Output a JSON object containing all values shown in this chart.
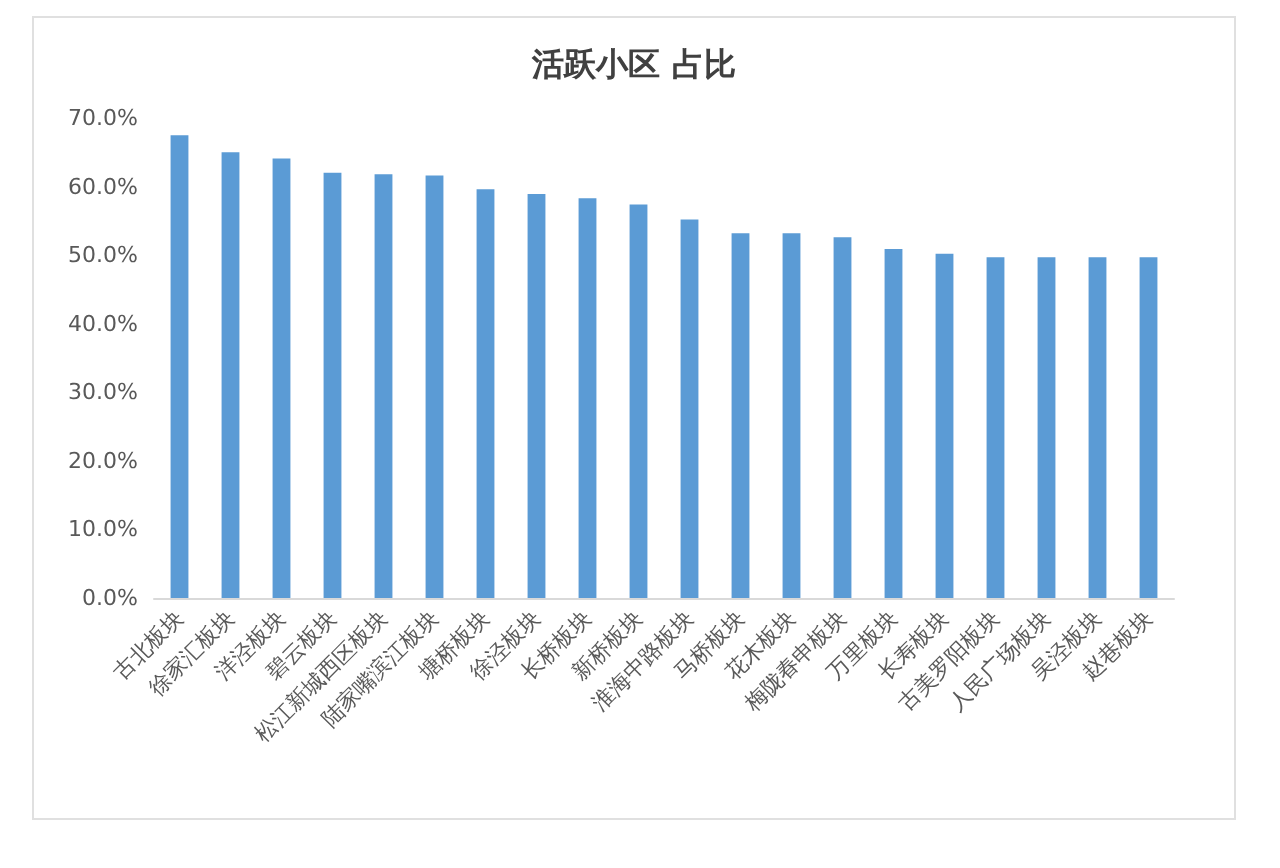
{
  "chart_data": {
    "type": "bar",
    "title": "活跃小区 占比",
    "categories": [
      "古北板块",
      "徐家汇板块",
      "洋泾板块",
      "碧云板块",
      "松江新城西区板块",
      "陆家嘴滨江板块",
      "塘桥板块",
      "徐泾板块",
      "长桥板块",
      "新桥板块",
      "淮海中路板块",
      "马桥板块",
      "花木板块",
      "梅陇春申板块",
      "万里板块",
      "长寿板块",
      "古美罗阳板块",
      "人民广场板块",
      "吴泾板块",
      "赵巷板块"
    ],
    "values": [
      67.5,
      65.0,
      64.1,
      62.0,
      61.8,
      61.6,
      59.6,
      58.9,
      58.3,
      57.4,
      55.2,
      53.2,
      53.2,
      52.6,
      50.9,
      50.2,
      49.7,
      49.7,
      49.7,
      49.7
    ],
    "color": "#5b9bd5",
    "ylim": [
      0,
      70
    ],
    "yticks": [
      {
        "value": 0,
        "label": "0.0%"
      },
      {
        "value": 10,
        "label": "10.0%"
      },
      {
        "value": 20,
        "label": "20.0%"
      },
      {
        "value": 30,
        "label": "30.0%"
      },
      {
        "value": 40,
        "label": "40.0%"
      },
      {
        "value": 50,
        "label": "50.0%"
      },
      {
        "value": 60,
        "label": "60.0%"
      },
      {
        "value": 70,
        "label": "70.0%"
      }
    ],
    "grid": false
  }
}
